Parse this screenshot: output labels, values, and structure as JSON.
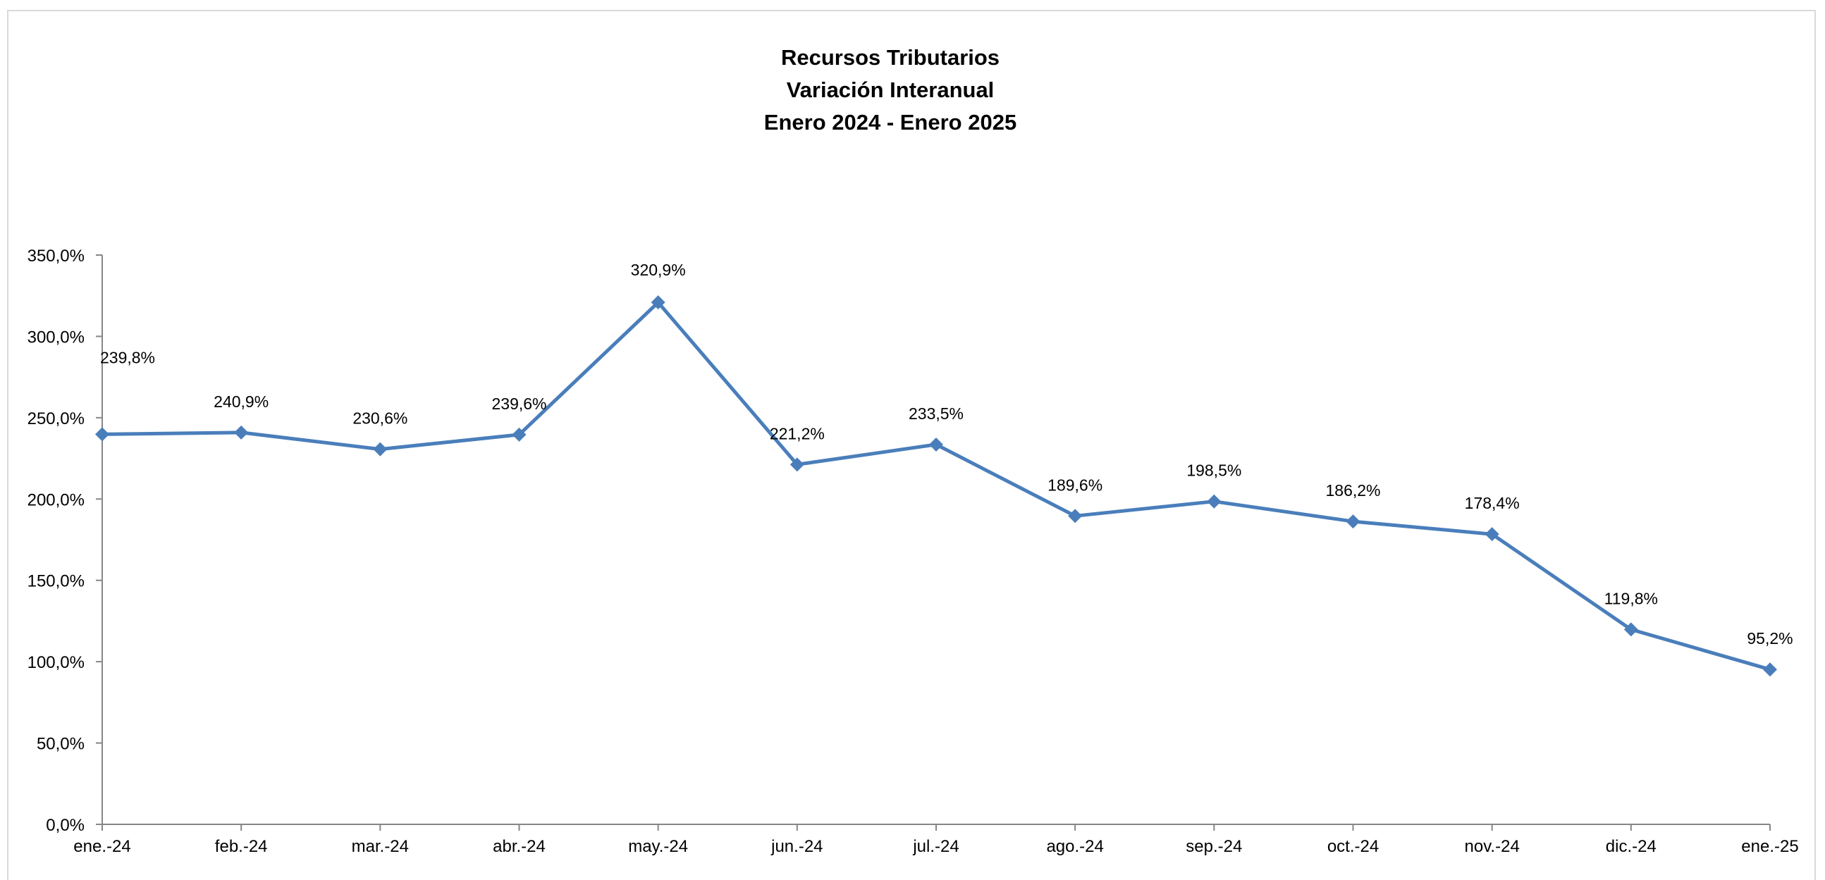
{
  "chart_data": {
    "type": "line",
    "title_lines": [
      "Recursos Tributarios",
      "Variación Interanual",
      "Enero 2024 - Enero 2025"
    ],
    "xlabel": "",
    "ylabel": "",
    "categories": [
      "ene.-24",
      "feb.-24",
      "mar.-24",
      "abr.-24",
      "may.-24",
      "jun.-24",
      "jul.-24",
      "ago.-24",
      "sep.-24",
      "oct.-24",
      "nov.-24",
      "dic.-24",
      "ene.-25"
    ],
    "series": [
      {
        "values": [
          239.8,
          240.9,
          230.6,
          239.6,
          320.9,
          221.2,
          233.5,
          189.6,
          198.5,
          186.2,
          178.4,
          119.8,
          95.2
        ],
        "labels": [
          "239,8%",
          "240,9%",
          "230,6%",
          "239,6%",
          "320,9%",
          "221,2%",
          "233,5%",
          "189,6%",
          "198,5%",
          "186,2%",
          "178,4%",
          "119,8%",
          "95,2%"
        ],
        "color": "#4a7ebb",
        "marker": "diamond"
      }
    ],
    "ylim": [
      0,
      350
    ],
    "y_ticks": [
      0,
      50,
      100,
      150,
      200,
      250,
      300,
      350
    ],
    "y_tick_labels": [
      "0,0%",
      "50,0%",
      "100,0%",
      "150,0%",
      "200,0%",
      "250,0%",
      "300,0%",
      "350,0%"
    ],
    "grid": false,
    "legend": "none"
  }
}
